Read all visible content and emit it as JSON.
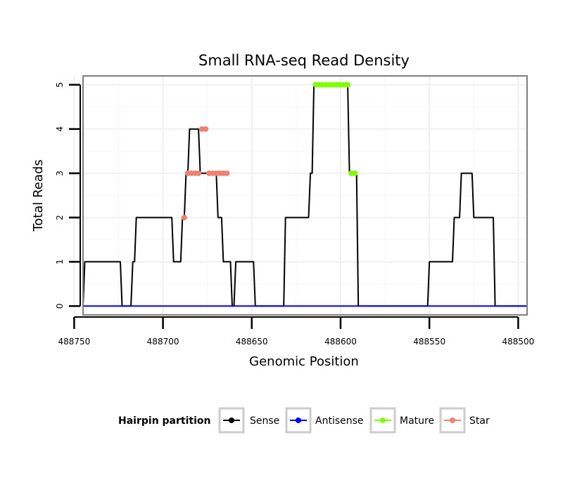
{
  "chart_data": {
    "type": "line",
    "title": "Small RNA-seq Read Density",
    "xlabel": "Genomic Position",
    "ylabel": "Total Reads",
    "x_reversed": true,
    "xlim": [
      488745,
      488495
    ],
    "ylim": [
      -0.2,
      5.2
    ],
    "x_ticks": [
      488750,
      488700,
      488650,
      488600,
      488550,
      488500
    ],
    "x_tick_labels": [
      "488750",
      "488700",
      "488650",
      "488600",
      "488550",
      "488500"
    ],
    "y_ticks": [
      0,
      1,
      2,
      3,
      4,
      5
    ],
    "y_tick_labels": [
      "0",
      "1",
      "2",
      "3",
      "4",
      "5"
    ],
    "grid": true,
    "legend": {
      "title": "Hairpin partition",
      "placement": "bottom",
      "entries": [
        "Sense",
        "Antisense",
        "Mature",
        "Star"
      ]
    },
    "series": [
      {
        "name": "Sense",
        "color": "#000000",
        "x": [
          488745,
          488744,
          488724,
          488723,
          488718,
          488717,
          488716,
          488715,
          488695,
          488694,
          488690,
          488689,
          488688,
          488687,
          488686,
          488685,
          488680,
          488679,
          488678,
          488677,
          488670,
          488669,
          488667,
          488666,
          488662,
          488661,
          488660,
          488659,
          488654,
          488653,
          488652,
          488651,
          488649,
          488648,
          488632,
          488631,
          488618,
          488617,
          488616,
          488615,
          488614,
          488613,
          488596,
          488595,
          488591,
          488590,
          488551,
          488550,
          488537,
          488536,
          488533,
          488532,
          488526,
          488525,
          488514,
          488513,
          488495
        ],
        "y": [
          0,
          1,
          1,
          0,
          0,
          1,
          1,
          2,
          2,
          1,
          1,
          2,
          2,
          3,
          3,
          4,
          4,
          3,
          3,
          3,
          3,
          2,
          2,
          1,
          1,
          0,
          0,
          1,
          1,
          1,
          1,
          1,
          1,
          0,
          0,
          2,
          2,
          3,
          3,
          5,
          5,
          5,
          5,
          3,
          3,
          0,
          0,
          1,
          1,
          2,
          2,
          3,
          3,
          2,
          2,
          0,
          0
        ]
      },
      {
        "name": "Antisense",
        "color": "#0000ff",
        "x": [
          488745,
          488495
        ],
        "y": [
          0,
          0
        ]
      },
      {
        "name": "Mature",
        "color": "#7fff00",
        "x": [
          488614,
          488612,
          488610,
          488608,
          488606,
          488604,
          488602,
          488600,
          488598,
          488596,
          488594,
          488592
        ],
        "y": [
          5,
          5,
          5,
          5,
          5,
          5,
          5,
          5,
          5,
          5,
          3,
          3
        ]
      },
      {
        "name": "Star",
        "color": "#f08070",
        "x": [
          488688,
          488686,
          488684,
          488682,
          488680,
          488678,
          488676,
          488674,
          488672,
          488670,
          488668,
          488666,
          488664
        ],
        "y": [
          2,
          3,
          3,
          3,
          3,
          4,
          4,
          3,
          3,
          3,
          3,
          3,
          3
        ]
      }
    ]
  }
}
